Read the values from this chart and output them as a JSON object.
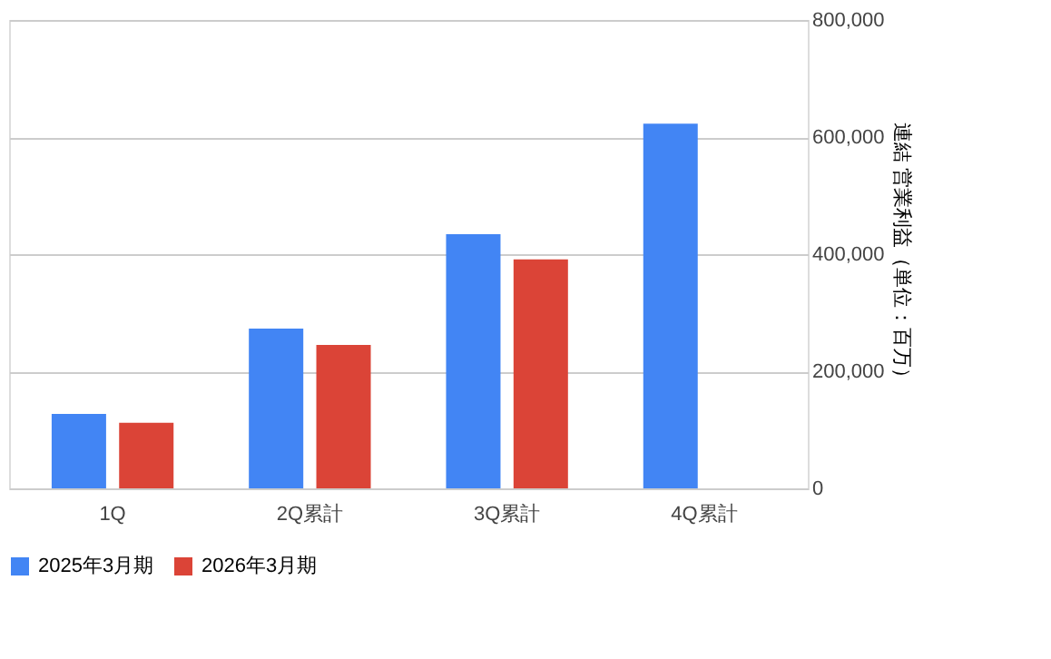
{
  "chart_data": {
    "type": "bar",
    "categories": [
      "1Q",
      "2Q累計",
      "3Q累計",
      "4Q累計"
    ],
    "series": [
      {
        "name": "2025年3月期",
        "color": "#4285f4",
        "values": [
          127000,
          273000,
          434000,
          623000
        ]
      },
      {
        "name": "2026年3月期",
        "color": "#db4437",
        "values": [
          112000,
          245000,
          391000,
          null
        ]
      }
    ],
    "ylabel": "連結 営業利益（単位：百万）",
    "ylim": [
      0,
      800000
    ],
    "yticks": [
      0,
      {
        "value": 200000,
        "label": "200,000"
      },
      {
        "value": 400000,
        "label": "400,000"
      },
      {
        "value": 600000,
        "label": "600,000"
      },
      {
        "value": 800000,
        "label": "800,000"
      }
    ],
    "grid": "y",
    "legend": "bottom"
  }
}
